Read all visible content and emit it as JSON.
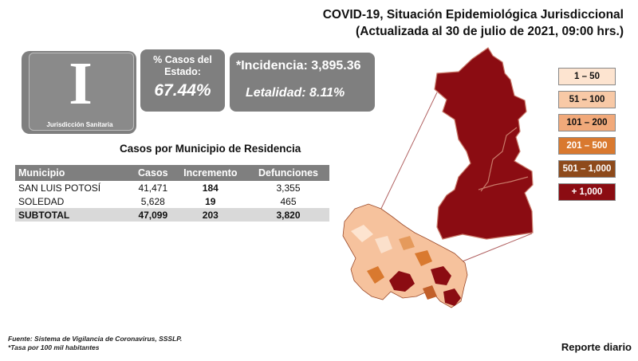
{
  "header": {
    "title": "COVID-19, Situación Epidemiológica Jurisdiccional",
    "subtitle": "(Actualizada al 30 de julio de 2021, 09:00 hrs.)"
  },
  "jurisdiction": {
    "numeral": "I",
    "label": "Jurisdicción Sanitaria"
  },
  "state_cases": {
    "title": "% Casos del Estado:",
    "value": "67.44%"
  },
  "rates": {
    "incidence": "*Incidencia: 3,895.36",
    "lethality": "Letalidad: 8.11%"
  },
  "table": {
    "title": "Casos por Municipio de Residencia",
    "headers": [
      "Municipio",
      "Casos",
      "Incremento",
      "Defunciones"
    ],
    "rows": [
      [
        "SAN LUIS POTOSÍ",
        "41,471",
        "184",
        "3,355"
      ],
      [
        "SOLEDAD",
        "5,628",
        "19",
        "465"
      ]
    ],
    "subtotal": [
      "SUBTOTAL",
      "47,099",
      "203",
      "3,820"
    ]
  },
  "legend": [
    {
      "label": "1 – 50",
      "color": "#fde4d0",
      "text_color": "#111111"
    },
    {
      "label": "51 – 100",
      "color": "#f8c9a6",
      "text_color": "#111111"
    },
    {
      "label": "101 – 200",
      "color": "#f1a97a",
      "text_color": "#111111"
    },
    {
      "label": "201 – 500",
      "color": "#d9792f",
      "text_color": "#ffffff"
    },
    {
      "label": "501 – 1,000",
      "color": "#8e4a1b",
      "text_color": "#ffffff"
    },
    {
      "label": "+ 1,000",
      "color": "#8b0c12",
      "text_color": "#ffffff"
    }
  ],
  "footer": {
    "source": "Fuente: Sistema de Vigilancia de Coronavirus, SSSLP.",
    "note": "*Tasa por 100 mil habitantes"
  },
  "report": "Reporte diario"
}
